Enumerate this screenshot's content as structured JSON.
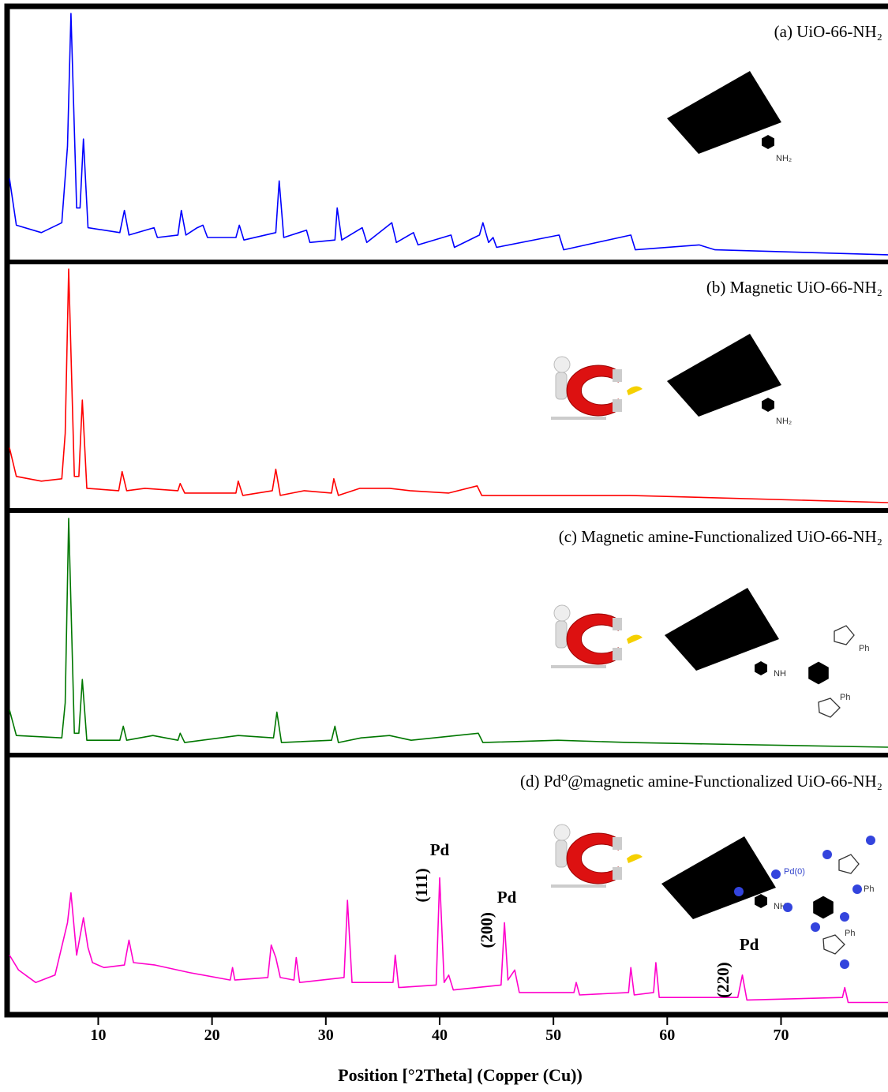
{
  "chart_data": {
    "type": "line",
    "xlabel": "Position [°2Theta] (Copper (Cu))",
    "xlim": [
      2.2,
      79.4
    ],
    "xticks": [
      10,
      20,
      30,
      40,
      50,
      60,
      70
    ],
    "ylim": [
      0,
      100
    ],
    "series": [
      {
        "name": "(a) UiO-66-NH₂",
        "color": "#0000ff",
        "x": [
          2.2,
          2.8,
          5,
          6.8,
          7.3,
          7.6,
          8.1,
          8.4,
          8.7,
          9.1,
          11.9,
          12.3,
          12.7,
          14.9,
          15.2,
          17.0,
          17.3,
          17.7,
          18.7,
          19.2,
          19.6,
          22.1,
          22.4,
          22.8,
          25.6,
          25.9,
          26.3,
          28.3,
          28.6,
          30.8,
          31.0,
          31.4,
          33.2,
          33.6,
          35.8,
          36.2,
          37.7,
          38.1,
          41,
          41.3,
          43.5,
          43.8,
          44.3,
          44.7,
          45,
          50.5,
          50.9,
          56.8,
          57.2,
          62.8,
          64.2,
          79.4
        ],
        "values": [
          32,
          13,
          10,
          14,
          45,
          99,
          20,
          20,
          48,
          12,
          10,
          19,
          9,
          12,
          8,
          9,
          19,
          9,
          12,
          13,
          8,
          8,
          13,
          7,
          10,
          31,
          8,
          11,
          6,
          7,
          20,
          7,
          12,
          6,
          14,
          6,
          10,
          5,
          9,
          4,
          9,
          14,
          6,
          8,
          4,
          9,
          3,
          9,
          3,
          5,
          3,
          1
        ]
      },
      {
        "name": "(b) Magnetic UiO-66-NH₂",
        "color": "#ff0000",
        "x": [
          2.2,
          2.8,
          5,
          6.8,
          7.1,
          7.4,
          7.9,
          8.3,
          8.6,
          9.0,
          11.8,
          12.1,
          12.5,
          14.1,
          17.0,
          17.2,
          17.6,
          22.1,
          22.3,
          22.7,
          25.3,
          25.6,
          26.0,
          28.1,
          30.5,
          30.7,
          31.1,
          33.0,
          35.6,
          37.4,
          40.8,
          43.3,
          43.7,
          50.3,
          56.7,
          79.4
        ],
        "values": [
          24,
          12,
          10,
          11,
          30,
          99,
          12,
          12,
          44,
          7,
          6,
          14,
          6,
          7,
          6,
          9,
          5,
          5,
          10,
          4,
          6,
          15,
          4,
          6,
          5,
          11,
          4,
          7,
          7,
          6,
          5,
          8,
          4,
          4,
          4,
          1
        ]
      },
      {
        "name": "(c) Magnetic amine-Functionalized UiO-66-NH₂",
        "color": "#007700",
        "x": [
          2.2,
          2.8,
          6.8,
          7.1,
          7.4,
          7.9,
          8.3,
          8.6,
          9.0,
          11.9,
          12.2,
          12.5,
          14.8,
          17.0,
          17.2,
          17.6,
          22.3,
          25.4,
          25.7,
          26.1,
          30.5,
          30.8,
          31.1,
          33.1,
          35.6,
          37.5,
          43.4,
          43.8,
          50.4,
          56.7,
          79.4
        ],
        "values": [
          17,
          6,
          5,
          20,
          99,
          7,
          7,
          30,
          4,
          4,
          10,
          4,
          6,
          4,
          7,
          3,
          6,
          5,
          16,
          3,
          4,
          10,
          3,
          5,
          6,
          4,
          7,
          3,
          4,
          3,
          1
        ]
      },
      {
        "name": "(d) Pd⁰@magnetic amine-Functionalized UiO-66-NH₂",
        "color": "#ff00cc",
        "x": [
          2.2,
          3,
          4.5,
          6.2,
          7.3,
          7.6,
          8.1,
          8.7,
          9.1,
          9.5,
          10.5,
          12.3,
          12.7,
          13.1,
          15,
          18,
          21.6,
          21.8,
          22,
          24.9,
          25.2,
          25.6,
          26,
          27.2,
          27.4,
          27.7,
          31.6,
          31.9,
          32.3,
          35.9,
          36.1,
          36.4,
          39.7,
          40.0,
          40.4,
          40.8,
          41.2,
          45.4,
          45.7,
          46.0,
          46.6,
          47.0,
          51.8,
          52.0,
          52.3,
          56.6,
          56.8,
          57.1,
          58.8,
          59.0,
          59.3,
          66.2,
          66.6,
          67.0,
          75.4,
          75.6,
          75.9,
          79.4
        ],
        "values": [
          22,
          16,
          11,
          14,
          35,
          47,
          22,
          37,
          25,
          19,
          17,
          18,
          28,
          19,
          18,
          15,
          12,
          17,
          12,
          13,
          26,
          21,
          13,
          12,
          21,
          11,
          13,
          44,
          11,
          11,
          22,
          9,
          10,
          53,
          11,
          14,
          8,
          10,
          35,
          12,
          16,
          7,
          7,
          11,
          6,
          7,
          17,
          6,
          7,
          19,
          5,
          5,
          14,
          4,
          5,
          9,
          3,
          3
        ]
      }
    ],
    "annotations": [
      {
        "text": "Pd",
        "x": 40.0,
        "y": 62
      },
      {
        "text": "Pd",
        "x": 45.9,
        "y": 43
      },
      {
        "text": "Pd",
        "x": 67.2,
        "y": 24
      },
      {
        "text": "(111)",
        "x": 38.9,
        "y": 50,
        "rotate": -90
      },
      {
        "text": "(200)",
        "x": 44.6,
        "y": 32,
        "rotate": -90
      },
      {
        "text": "(220)",
        "x": 65.4,
        "y": 12,
        "rotate": -90
      }
    ],
    "structure_labels": {
      "amine": "NH₂",
      "linker": "NH",
      "phenyl": "Ph",
      "palladium": "Pd(0)"
    }
  }
}
